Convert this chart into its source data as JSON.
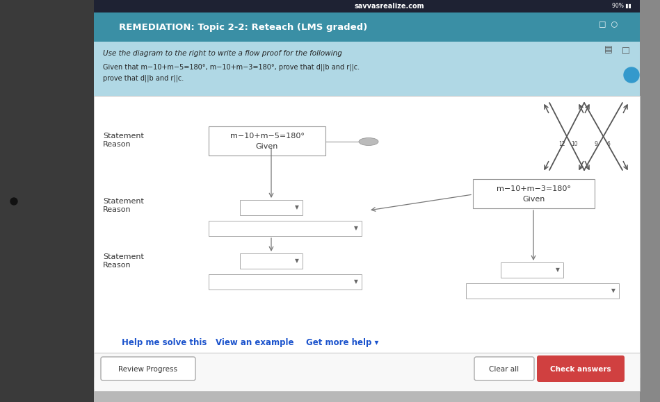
{
  "bg_color": "#b8b8b8",
  "white": "#ffffff",
  "light_gray": "#ececec",
  "medium_gray": "#c0c0c0",
  "dark_gray": "#888888",
  "box_border": "#aaaaaa",
  "arrow_color": "#666666",
  "teal_header": "#3a8fa5",
  "info_bar_color": "#b0d8e5",
  "blue_text": "#1a52cc",
  "check_btn_color": "#d04040",
  "top_bar_dark": "#1e2233",
  "statement_label": "Statement",
  "reason_label": "Reason",
  "box1_line1": "m−10+m−5=180°",
  "box1_line2": "Given",
  "box2_line1": "m−10+m−3=180°",
  "box2_line2": "Given",
  "header_text": "REMEDIATION: Topic 2-2: Reteach (LMS graded)",
  "top_text": "savvasrealize.com",
  "title_line1": "Use the diagram to the right to write a flow proof for the following",
  "title_line2": "Given that m−10+m−5=180°, m−10+m−3=180°, prove that d||b and r||c.",
  "help_text": "Help me solve this",
  "example_text": "View an example",
  "more_help_text": "Get more help ▾",
  "clear_text": "Clear all",
  "check_text": "Check answers",
  "review_text": "Review Progress"
}
